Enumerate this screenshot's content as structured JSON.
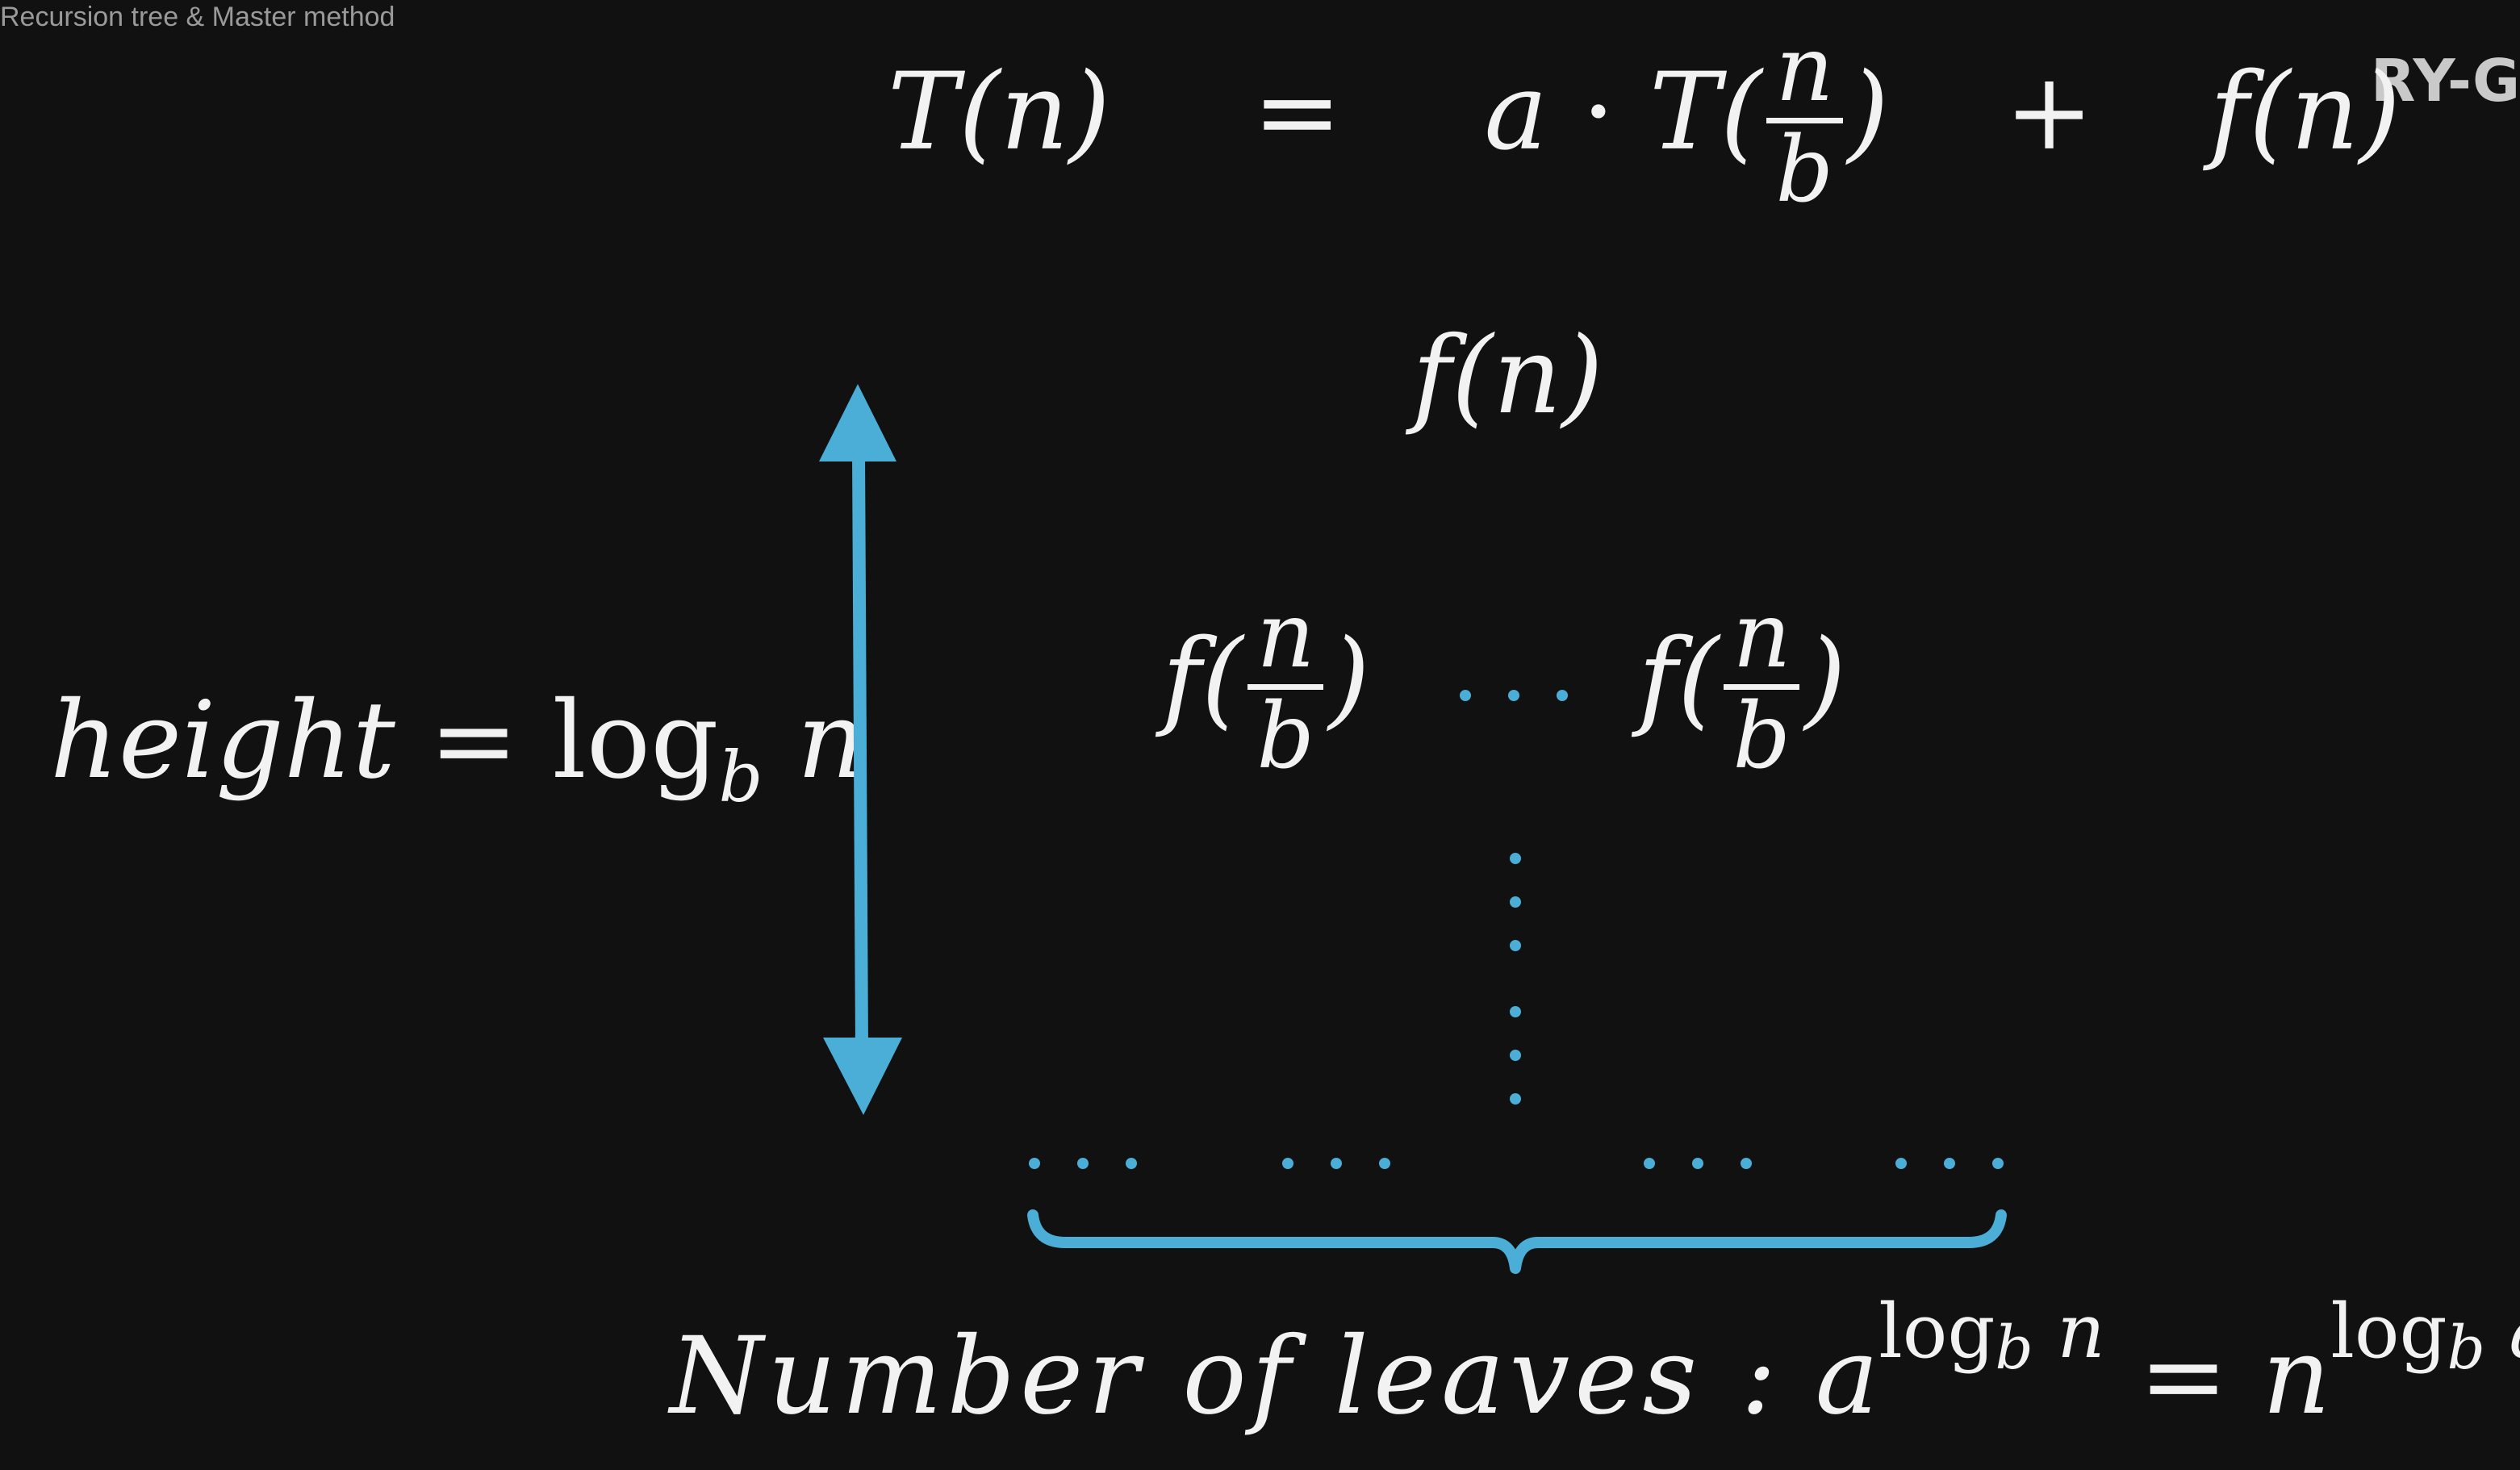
{
  "window": {
    "title": "Recursion tree & Master method"
  },
  "watermark": "RY-Gi",
  "colors": {
    "background": "#111112",
    "accent": "#4aaed6",
    "text": "#f2f2f2"
  },
  "recurrence": {
    "lhs": "T(n)",
    "eq": "=",
    "a": "a",
    "dot": "·",
    "T_open": "T(",
    "num": "n",
    "den": "b",
    "close": ")",
    "plus": "+",
    "fn": "f(n)"
  },
  "tree": {
    "root": "f(n)",
    "child_f_open": "f(",
    "child_num": "n",
    "child_den": "b",
    "child_close": ")",
    "child_ellipsis": "· · ·"
  },
  "height_label": {
    "word": "height",
    "eq": "=",
    "log": "log",
    "base": "b",
    "arg": "n"
  },
  "leaves_label": {
    "text": "Number of leaves :",
    "a": "a",
    "log": "log",
    "base": "b",
    "exp_arg": "n",
    "eq": "=",
    "n": "n",
    "exp_arg2": "a"
  }
}
